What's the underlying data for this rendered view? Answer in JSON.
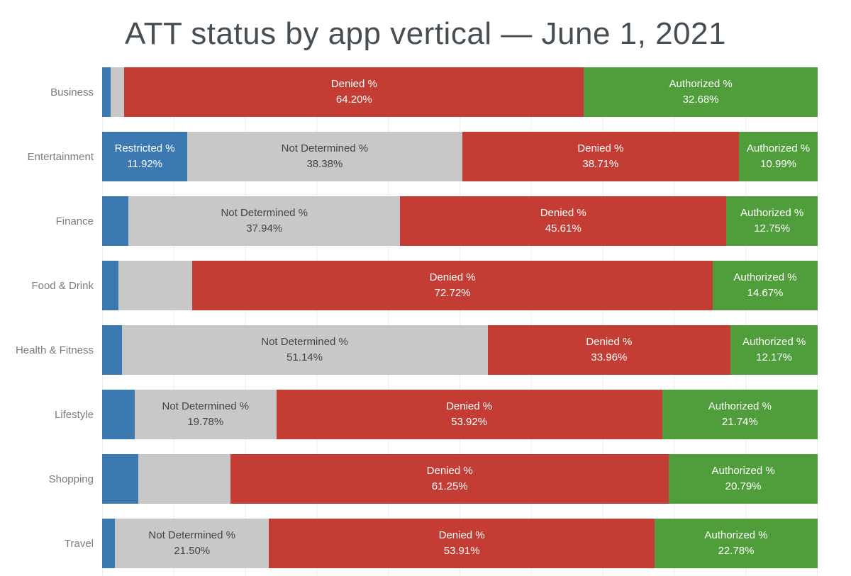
{
  "title": "ATT status by app vertical — June 1, 2021",
  "colors": {
    "restricted": "#3b79b0",
    "not_determined": "#c8c8c8",
    "denied": "#c33d34",
    "authorized": "#4f9d3b",
    "label_on_dark": "#ffffff",
    "label_on_gray": "#444444",
    "category_label": "#7b7b7b",
    "gridline": "#ebebeb",
    "title_text": "#464d53"
  },
  "chart_data": {
    "type": "bar",
    "orientation": "horizontal-stacked",
    "title": "ATT status by app vertical — June 1, 2021",
    "xlabel": "",
    "ylabel": "",
    "xlim": [
      0,
      100
    ],
    "gridlines_every_pct": 10,
    "legend_position": "none",
    "statuses": [
      "Restricted %",
      "Not Determined %",
      "Denied %",
      "Authorized %"
    ],
    "rows": [
      {
        "category": "Business",
        "segments": [
          {
            "status": "Restricted %",
            "value": 1.2,
            "labeled": false,
            "value_label": null
          },
          {
            "status": "Not Determined %",
            "value": 1.92,
            "labeled": false,
            "value_label": null
          },
          {
            "status": "Denied %",
            "value": 64.2,
            "labeled": true,
            "value_label": "64.20%"
          },
          {
            "status": "Authorized %",
            "value": 32.68,
            "labeled": true,
            "value_label": "32.68%"
          }
        ]
      },
      {
        "category": "Entertainment",
        "segments": [
          {
            "status": "Restricted %",
            "value": 11.92,
            "labeled": true,
            "value_label": "11.92%"
          },
          {
            "status": "Not Determined %",
            "value": 38.38,
            "labeled": true,
            "value_label": "38.38%"
          },
          {
            "status": "Denied %",
            "value": 38.71,
            "labeled": true,
            "value_label": "38.71%"
          },
          {
            "status": "Authorized %",
            "value": 10.99,
            "labeled": true,
            "value_label": "10.99%"
          }
        ]
      },
      {
        "category": "Finance",
        "segments": [
          {
            "status": "Restricted %",
            "value": 3.7,
            "labeled": false,
            "value_label": null
          },
          {
            "status": "Not Determined %",
            "value": 37.94,
            "labeled": true,
            "value_label": "37.94%"
          },
          {
            "status": "Denied %",
            "value": 45.61,
            "labeled": true,
            "value_label": "45.61%"
          },
          {
            "status": "Authorized %",
            "value": 12.75,
            "labeled": true,
            "value_label": "12.75%"
          }
        ]
      },
      {
        "category": "Food & Drink",
        "segments": [
          {
            "status": "Restricted %",
            "value": 2.3,
            "labeled": false,
            "value_label": null
          },
          {
            "status": "Not Determined %",
            "value": 10.31,
            "labeled": false,
            "value_label": null
          },
          {
            "status": "Denied %",
            "value": 72.72,
            "labeled": true,
            "value_label": "72.72%"
          },
          {
            "status": "Authorized %",
            "value": 14.67,
            "labeled": true,
            "value_label": "14.67%"
          }
        ]
      },
      {
        "category": "Health & Fitness",
        "segments": [
          {
            "status": "Restricted %",
            "value": 2.73,
            "labeled": false,
            "value_label": null
          },
          {
            "status": "Not Determined %",
            "value": 51.14,
            "labeled": true,
            "value_label": "51.14%"
          },
          {
            "status": "Denied %",
            "value": 33.96,
            "labeled": true,
            "value_label": "33.96%"
          },
          {
            "status": "Authorized %",
            "value": 12.17,
            "labeled": true,
            "value_label": "12.17%"
          }
        ]
      },
      {
        "category": "Lifestyle",
        "segments": [
          {
            "status": "Restricted %",
            "value": 4.56,
            "labeled": false,
            "value_label": null
          },
          {
            "status": "Not Determined %",
            "value": 19.78,
            "labeled": true,
            "value_label": "19.78%"
          },
          {
            "status": "Denied %",
            "value": 53.92,
            "labeled": true,
            "value_label": "53.92%"
          },
          {
            "status": "Authorized %",
            "value": 21.74,
            "labeled": true,
            "value_label": "21.74%"
          }
        ]
      },
      {
        "category": "Shopping",
        "segments": [
          {
            "status": "Restricted %",
            "value": 5.1,
            "labeled": false,
            "value_label": null
          },
          {
            "status": "Not Determined %",
            "value": 12.86,
            "labeled": false,
            "value_label": null
          },
          {
            "status": "Denied %",
            "value": 61.25,
            "labeled": true,
            "value_label": "61.25%"
          },
          {
            "status": "Authorized %",
            "value": 20.79,
            "labeled": true,
            "value_label": "20.79%"
          }
        ]
      },
      {
        "category": "Travel",
        "segments": [
          {
            "status": "Restricted %",
            "value": 1.81,
            "labeled": false,
            "value_label": null
          },
          {
            "status": "Not Determined %",
            "value": 21.5,
            "labeled": true,
            "value_label": "21.50%"
          },
          {
            "status": "Denied %",
            "value": 53.91,
            "labeled": true,
            "value_label": "53.91%"
          },
          {
            "status": "Authorized %",
            "value": 22.78,
            "labeled": true,
            "value_label": "22.78%"
          }
        ]
      }
    ]
  }
}
